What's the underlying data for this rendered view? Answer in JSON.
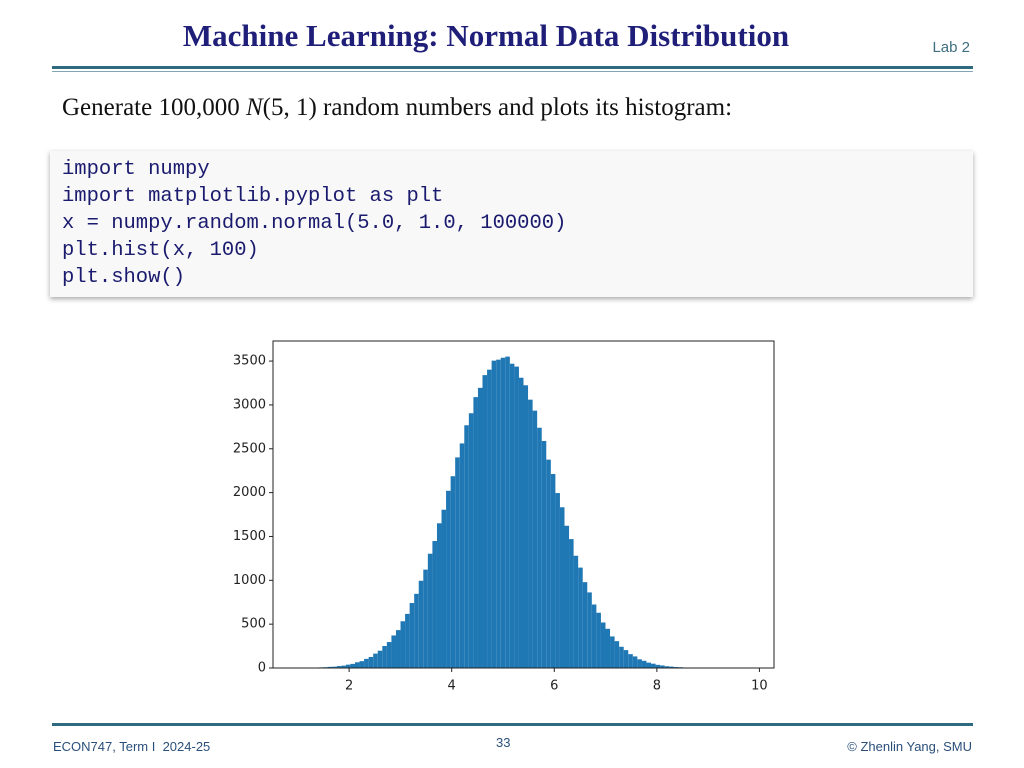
{
  "header": {
    "title": "Machine Learning: Normal Data Distribution",
    "lab": "Lab 2"
  },
  "intro": {
    "before": "Generate 100,000 ",
    "italic": "N",
    "after": "(5, 1) random numbers and plots its histogram:"
  },
  "code": [
    "import numpy",
    "import matplotlib.pyplot as plt",
    "x = numpy.random.normal(5.0, 1.0, 100000)",
    "plt.hist(x, 100)",
    "plt.show()"
  ],
  "footer": {
    "left": "ECON747, Term I  2024-25",
    "page": "33",
    "right": "© Zhenlin Yang, SMU"
  },
  "chart_data": {
    "type": "histogram",
    "color": "#1f77b4",
    "bins": [
      0.96,
      1.0488,
      1.1376,
      1.2264,
      1.3152,
      1.404,
      1.4928,
      1.5816,
      1.6704,
      1.7592,
      1.848,
      1.9368,
      2.0256,
      2.1144,
      2.2032,
      2.292,
      2.3808,
      2.4696,
      2.5584,
      2.6472,
      2.736,
      2.8248,
      2.9136,
      3.0024,
      3.0912,
      3.18,
      3.2688,
      3.3576,
      3.4464,
      3.5352,
      3.624,
      3.7128,
      3.8016,
      3.8904,
      3.9792,
      4.068,
      4.1568,
      4.2456,
      4.3344,
      4.4232,
      4.512,
      4.6008,
      4.6896,
      4.7784,
      4.8672,
      4.956,
      5.0448,
      5.1336,
      5.2224,
      5.3112,
      5.4,
      5.4888,
      5.5776,
      5.6664,
      5.7552,
      5.844,
      5.9328,
      6.0216,
      6.1104,
      6.1992,
      6.288,
      6.3768,
      6.4656,
      6.5544,
      6.6432,
      6.732,
      6.8208,
      6.9096,
      6.9984,
      7.0872,
      7.176,
      7.2648,
      7.3536,
      7.4424,
      7.5312,
      7.62,
      7.7088,
      7.7976,
      7.8864,
      7.9752,
      8.064,
      8.1528,
      8.2416,
      8.3304,
      8.4192,
      8.508,
      8.5968,
      8.6856,
      8.7744,
      8.8632,
      8.952,
      9.0408,
      9.1296,
      9.2184,
      9.3072,
      9.396,
      9.4848,
      9.5736,
      9.6624,
      9.7512,
      9.84
    ],
    "counts": [
      0,
      1,
      2,
      3,
      5,
      7,
      9,
      13,
      15,
      22,
      27,
      38,
      47,
      65,
      78,
      104,
      126,
      164,
      197,
      251,
      296,
      371,
      432,
      533,
      617,
      741,
      846,
      995,
      1122,
      1303,
      1448,
      1650,
      1805,
      2021,
      2187,
      2402,
      2561,
      2768,
      2905,
      3089,
      3195,
      3340,
      3402,
      3505,
      3516,
      3538,
      3551,
      3470,
      3437,
      3310,
      3224,
      3060,
      2935,
      2740,
      2589,
      2376,
      2212,
      1995,
      1833,
      1622,
      1470,
      1280,
      1145,
      979,
      862,
      724,
      630,
      519,
      447,
      360,
      306,
      242,
      204,
      158,
      132,
      99,
      82,
      61,
      49,
      36,
      29,
      20,
      16,
      11,
      9,
      6,
      4,
      3,
      2,
      1,
      1,
      0,
      0,
      0,
      0,
      0,
      0,
      0,
      0,
      1
    ],
    "xlim": [
      0.516,
      10.284
    ],
    "xticks": [
      2,
      4,
      6,
      8,
      10
    ],
    "ylim": [
      0,
      3729
    ],
    "yticks": [
      0,
      500,
      1000,
      1500,
      2000,
      2500,
      3000,
      3500
    ]
  }
}
